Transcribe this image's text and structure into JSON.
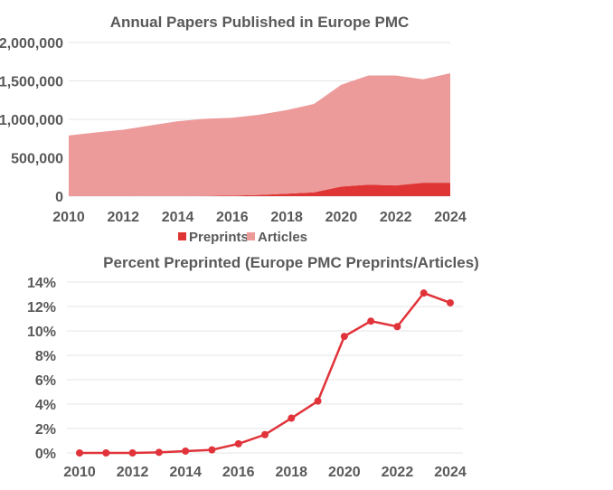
{
  "chart_data": [
    {
      "type": "area",
      "stacked": true,
      "title": "Annual Papers Published in Europe PMC",
      "xlabel": "",
      "ylabel": "",
      "x": [
        2010,
        2011,
        2012,
        2013,
        2014,
        2015,
        2016,
        2017,
        2018,
        2019,
        2020,
        2021,
        2022,
        2023,
        2024
      ],
      "x_tick_labels": [
        "2010",
        "2012",
        "2014",
        "2016",
        "2018",
        "2020",
        "2022",
        "2024"
      ],
      "y_tick_labels": [
        "0",
        "500,000",
        "1,000,000",
        "1,500,000",
        "2,000,000"
      ],
      "ylim": [
        0,
        2000000
      ],
      "grid": true,
      "legend": "bottom",
      "series": [
        {
          "name": "Preprints",
          "color": "#e03535",
          "values": [
            0,
            0,
            500,
            1000,
            2000,
            3000,
            8000,
            16000,
            32000,
            50000,
            125000,
            150000,
            140000,
            175000,
            175000
          ]
        },
        {
          "name": "Articles",
          "color": "#ec9a9a",
          "values": [
            790000,
            830000,
            864500,
            919000,
            973000,
            1005000,
            1012000,
            1044000,
            1088000,
            1150000,
            1325000,
            1420000,
            1430000,
            1345000,
            1425000
          ]
        }
      ]
    },
    {
      "type": "line",
      "title": "Percent Preprinted (Europe PMC Preprints/Articles)",
      "xlabel": "",
      "ylabel": "",
      "x": [
        2010,
        2011,
        2012,
        2013,
        2014,
        2015,
        2016,
        2017,
        2018,
        2019,
        2020,
        2021,
        2022,
        2023,
        2024
      ],
      "x_tick_labels": [
        "2010",
        "2012",
        "2014",
        "2016",
        "2018",
        "2020",
        "2022",
        "2024"
      ],
      "y_tick_labels": [
        "0%",
        "2%",
        "4%",
        "6%",
        "8%",
        "10%",
        "12%",
        "14%"
      ],
      "ylim": [
        0,
        14
      ],
      "grid": true,
      "series": [
        {
          "color": "#e0333a",
          "values": [
            0,
            0,
            0,
            0.05,
            0.15,
            0.25,
            0.75,
            1.5,
            2.85,
            4.25,
            9.55,
            10.8,
            10.35,
            13.1,
            12.3
          ]
        }
      ]
    }
  ]
}
